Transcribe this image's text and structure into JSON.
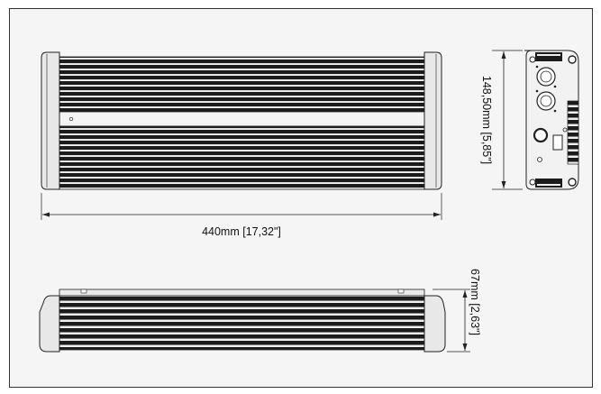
{
  "drawing": {
    "dimensions": {
      "width": "440mm [17,32\"]",
      "height": "148,50mm [5,85\"]",
      "depth": "67mm [2,63\"]"
    }
  },
  "colors": {
    "background": "#ffffff",
    "panel": "#f5f5f5",
    "border": "#333333",
    "body_dark": "#1a1a1a",
    "body_light": "#f2f2f2",
    "end_cap": "#e6e6e6"
  }
}
